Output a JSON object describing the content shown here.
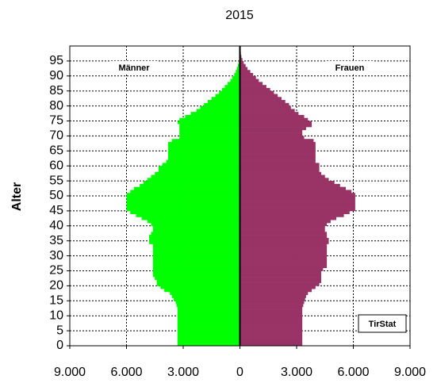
{
  "chart_data": {
    "type": "pyramid",
    "title": "2015",
    "y_label": "Alter",
    "annotations": [
      "Männer",
      "Frauen",
      "TirStat"
    ],
    "ages": [
      0,
      1,
      2,
      3,
      4,
      5,
      6,
      7,
      8,
      9,
      10,
      11,
      12,
      13,
      14,
      15,
      16,
      17,
      18,
      19,
      20,
      21,
      22,
      23,
      24,
      25,
      26,
      27,
      28,
      29,
      30,
      31,
      32,
      33,
      34,
      35,
      36,
      37,
      38,
      39,
      40,
      41,
      42,
      43,
      44,
      45,
      46,
      47,
      48,
      49,
      50,
      51,
      52,
      53,
      54,
      55,
      56,
      57,
      58,
      59,
      60,
      61,
      62,
      63,
      64,
      65,
      66,
      67,
      68,
      69,
      70,
      71,
      72,
      73,
      74,
      75,
      76,
      77,
      78,
      79,
      80,
      81,
      82,
      83,
      84,
      85,
      86,
      87,
      88,
      89,
      90,
      91,
      92,
      93,
      94,
      95,
      96,
      97,
      98,
      99
    ],
    "series": [
      {
        "name": "Männer",
        "color": "#00ff00",
        "values": [
          -3300,
          -3300,
          -3300,
          -3300,
          -3300,
          -3300,
          -3300,
          -3300,
          -3300,
          -3300,
          -3300,
          -3300,
          -3300,
          -3350,
          -3400,
          -3500,
          -3600,
          -3700,
          -4000,
          -4200,
          -4400,
          -4400,
          -4500,
          -4600,
          -4600,
          -4600,
          -4600,
          -4600,
          -4600,
          -4600,
          -4600,
          -4600,
          -4600,
          -4600,
          -4800,
          -4800,
          -4800,
          -4700,
          -4600,
          -4600,
          -4700,
          -4900,
          -5200,
          -5500,
          -5800,
          -6000,
          -6000,
          -6000,
          -6000,
          -6000,
          -6000,
          -5800,
          -5600,
          -5300,
          -5100,
          -4900,
          -4700,
          -4500,
          -4300,
          -4300,
          -4100,
          -3900,
          -3800,
          -3800,
          -3800,
          -3800,
          -3800,
          -3800,
          -3600,
          -3200,
          -3200,
          -3200,
          -3200,
          -3200,
          -3300,
          -3200,
          -2900,
          -2600,
          -2300,
          -2100,
          -1900,
          -1700,
          -1500,
          -1300,
          -1100,
          -950,
          -800,
          -650,
          -500,
          -400,
          -300,
          -220,
          -160,
          -110,
          -70,
          -40,
          -20,
          -10,
          -5,
          -3
        ]
      },
      {
        "name": "Frauen",
        "color": "#993366",
        "values": [
          3300,
          3300,
          3300,
          3300,
          3300,
          3300,
          3300,
          3300,
          3300,
          3300,
          3300,
          3300,
          3300,
          3350,
          3400,
          3450,
          3500,
          3600,
          3800,
          4000,
          4200,
          4300,
          4300,
          4300,
          4300,
          4400,
          4600,
          4600,
          4600,
          4600,
          4600,
          4600,
          4600,
          4600,
          4700,
          4700,
          4600,
          4600,
          4500,
          4500,
          4600,
          4800,
          5100,
          5500,
          5800,
          6100,
          6100,
          6100,
          6100,
          6100,
          6100,
          5900,
          5600,
          5300,
          5000,
          4700,
          4500,
          4300,
          4200,
          4200,
          4200,
          4000,
          4000,
          4000,
          4000,
          4000,
          4000,
          4000,
          3900,
          3400,
          3300,
          3300,
          3500,
          3800,
          3800,
          3600,
          3400,
          3100,
          2900,
          2700,
          2600,
          2400,
          2200,
          2000,
          1800,
          1600,
          1400,
          1200,
          1000,
          850,
          700,
          550,
          400,
          300,
          200,
          130,
          80,
          50,
          30,
          15
        ]
      }
    ],
    "xlim": [
      -9000,
      9000
    ],
    "xticks": [
      {
        "value": -9000,
        "label": "9.000"
      },
      {
        "value": -6000,
        "label": "6.000"
      },
      {
        "value": -3000,
        "label": "3.000"
      },
      0,
      {
        "value": 3000,
        "label": "3.000"
      },
      {
        "value": 6000,
        "label": "6.000"
      },
      {
        "value": 9000,
        "label": "9.000"
      }
    ],
    "ylim": [
      0,
      100
    ],
    "yticks": [
      0,
      5,
      10,
      15,
      20,
      25,
      30,
      35,
      40,
      45,
      50,
      55,
      60,
      65,
      70,
      75,
      80,
      85,
      90,
      95
    ],
    "grid": true
  }
}
